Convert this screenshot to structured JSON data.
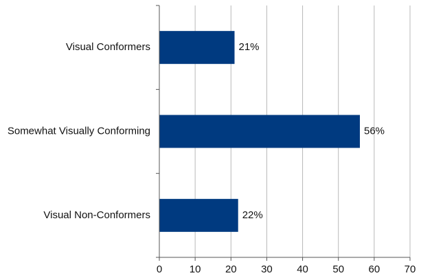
{
  "chart_data": {
    "type": "bar",
    "orientation": "horizontal",
    "categories": [
      "Visual Conformers",
      "Somewhat Visually Conforming",
      "Visual Non-Conformers"
    ],
    "series": [
      {
        "values": [
          21,
          56,
          22
        ],
        "labels": [
          "21%",
          "56%",
          "22%"
        ],
        "color": "#003a80"
      }
    ],
    "x_ticks": [
      0,
      10,
      20,
      30,
      40,
      50,
      60,
      70
    ],
    "xlim": [
      0,
      70
    ],
    "grid": true,
    "legend": "none",
    "title": "",
    "xlabel": "",
    "ylabel": ""
  }
}
